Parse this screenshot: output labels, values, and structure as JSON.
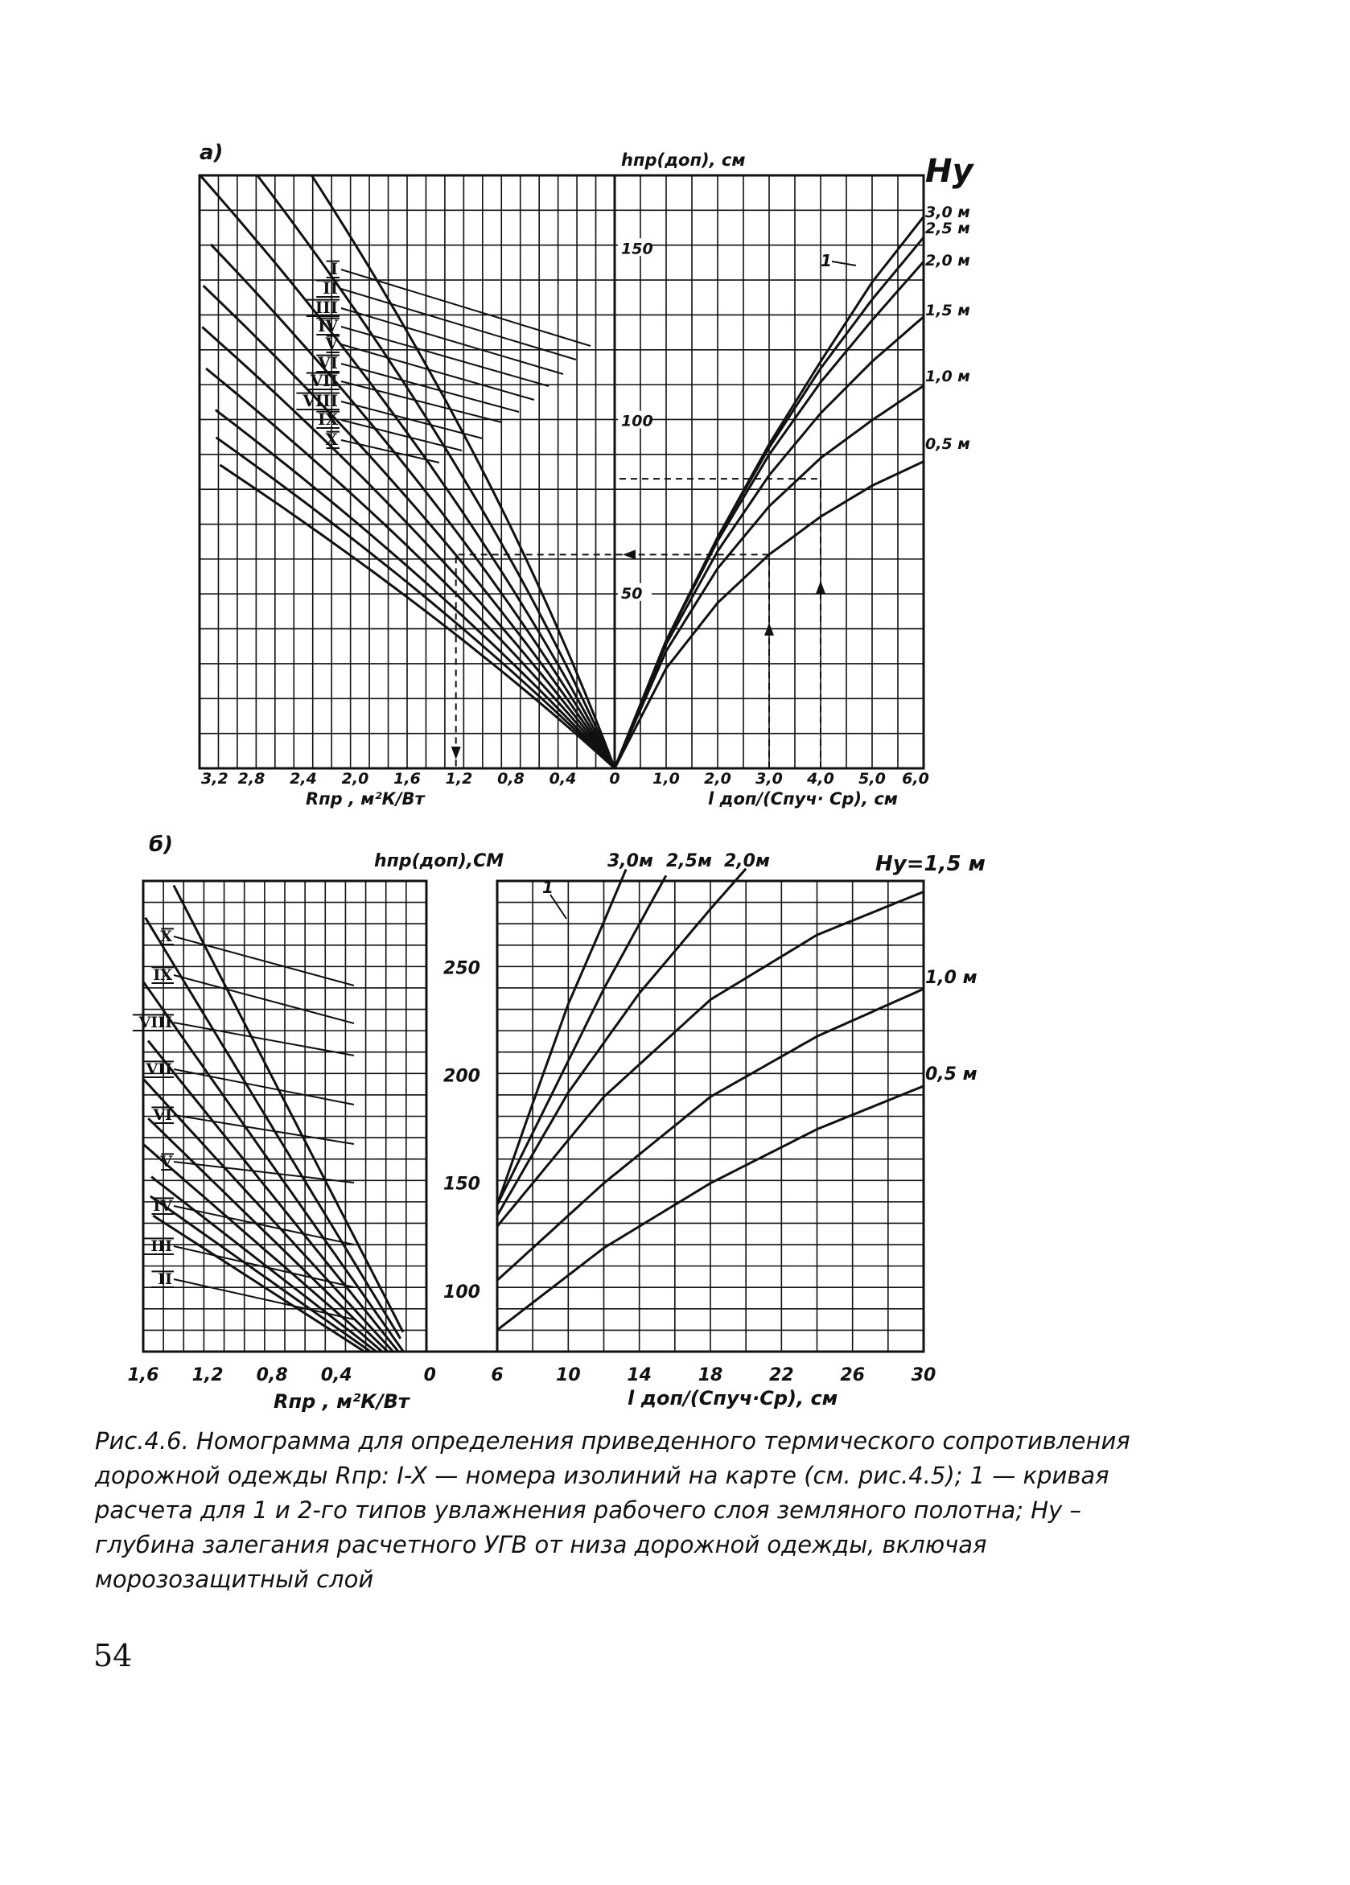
{
  "chart_data": [
    {
      "type": "line",
      "panel_label": "а)",
      "center_axis_label": "hпр(доп), см",
      "center_axis_ticks": [
        "150",
        "100",
        "50"
      ],
      "center_axis_values": [
        150,
        100,
        50
      ],
      "left_x_label": "Rпр , м²К/Вт",
      "left_x_ticks": [
        "3,2",
        "2,8",
        "2,4",
        "2,0",
        "1,6",
        "1,2",
        "0,8",
        "0,4",
        "0"
      ],
      "right_x_label": "l доп/(Спуч· Ср), см",
      "right_x_ticks": [
        "1,0",
        "2,0",
        "3,0",
        "4,0",
        "5,0",
        "6,0"
      ],
      "hy_label": "Hу",
      "curve_labels": [
        "I",
        "II",
        "III",
        "IV",
        "V",
        "VI",
        "VII",
        "VIII",
        "IX",
        "X"
      ],
      "curve1_label": "1",
      "gwl_series": [
        {
          "name": "3,0 м",
          "x": [
            0,
            1,
            2,
            3,
            4,
            5,
            6
          ],
          "y": [
            0,
            37,
            67,
            94,
            118,
            141,
            160
          ]
        },
        {
          "name": "2,5 м",
          "x": [
            0,
            1,
            2,
            3,
            4,
            5,
            6
          ],
          "y": [
            0,
            37,
            67,
            93,
            116,
            136,
            154
          ]
        },
        {
          "name": "2,0 м",
          "x": [
            0,
            1,
            2,
            3,
            4,
            5,
            6
          ],
          "y": [
            0,
            37,
            66,
            91,
            112,
            130,
            147
          ]
        },
        {
          "name": "1,5 м",
          "x": [
            0,
            1,
            2,
            3,
            4,
            5,
            6
          ],
          "y": [
            0,
            36,
            63,
            85,
            103,
            118,
            131
          ]
        },
        {
          "name": "1,0 м",
          "x": [
            0,
            1,
            2,
            3,
            4,
            5,
            6
          ],
          "y": [
            0,
            34,
            58,
            76,
            90,
            101,
            111
          ]
        },
        {
          "name": "0,5 м",
          "x": [
            0,
            1,
            2,
            3,
            4,
            5,
            6
          ],
          "y": [
            0,
            29,
            48,
            62,
            73,
            82,
            89
          ]
        }
      ],
      "isoline_slopes": [
        0.0106,
        0.0125,
        0.0145,
        0.0165,
        0.0186,
        0.0208,
        0.0232,
        0.0258,
        0.0283,
        0.031
      ],
      "example": {
        "x": 3.0,
        "h": 62,
        "r": 1.3
      }
    },
    {
      "type": "line",
      "panel_label": "б)",
      "center_axis_label": "hпр(доп),СМ",
      "center_axis_ticks": [
        "250",
        "200",
        "150",
        "100"
      ],
      "center_axis_values": [
        250,
        200,
        150,
        100
      ],
      "left_x_label": "Rпр , м²К/Вт",
      "left_x_ticks": [
        "1,6",
        "1,2",
        "0,8",
        "0,4",
        "0"
      ],
      "right_x_label": "l доп/(Спуч·Ср), см",
      "right_x_ticks": [
        "6",
        "10",
        "14",
        "18",
        "22",
        "26",
        "30"
      ],
      "hy_label": "Hу=1,5 м",
      "top_labels": [
        "3,0м",
        "2,5м",
        "2,0м"
      ],
      "curve_labels": [
        "X",
        "IX",
        "VIII",
        "VII",
        "VI",
        "V",
        "IV",
        "III",
        "II"
      ],
      "curve1_label": "1",
      "gwl_series": [
        {
          "name": "3,0 м",
          "x": [
            6,
            8,
            10,
            12,
            14
          ],
          "y": [
            140,
            187,
            233,
            271,
            310
          ]
        },
        {
          "name": "2,5 м",
          "x": [
            6,
            9,
            12,
            15,
            16
          ],
          "y": [
            140,
            190,
            240,
            285,
            300
          ]
        },
        {
          "name": "2,0 м",
          "x": [
            6,
            10,
            14,
            18,
            21
          ],
          "y": [
            135,
            192,
            238,
            277,
            305
          ]
        },
        {
          "name": "1,5 м",
          "x": [
            6,
            12,
            18,
            24,
            30
          ],
          "y": [
            130,
            190,
            235,
            265,
            285
          ]
        },
        {
          "name": "1,0 м",
          "x": [
            6,
            12,
            18,
            24,
            30
          ],
          "y": [
            105,
            150,
            190,
            218,
            240
          ]
        },
        {
          "name": "0,5 м",
          "x": [
            6,
            12,
            18,
            24,
            30
          ],
          "y": [
            82,
            120,
            150,
            175,
            195
          ]
        }
      ],
      "isoline_slopes": [
        0.0111,
        0.0131,
        0.0152,
        0.0174,
        0.0198,
        0.0222,
        0.0249,
        0.0278,
        0.0306,
        0.0336
      ]
    }
  ],
  "caption": "Рис.4.6. Номограмма для определения приведенного термического сопротивления дорожной одежды Rпр: I-X — номера изолиний на карте (см. рис.4.5); 1 — кривая расчета для 1 и 2-го типов увлажнения рабочего слоя земляного полотна; Hу – глубина залегания расчетного УГВ от низа дорожной одежды, включая морозозащитный слой",
  "page_number": "54"
}
